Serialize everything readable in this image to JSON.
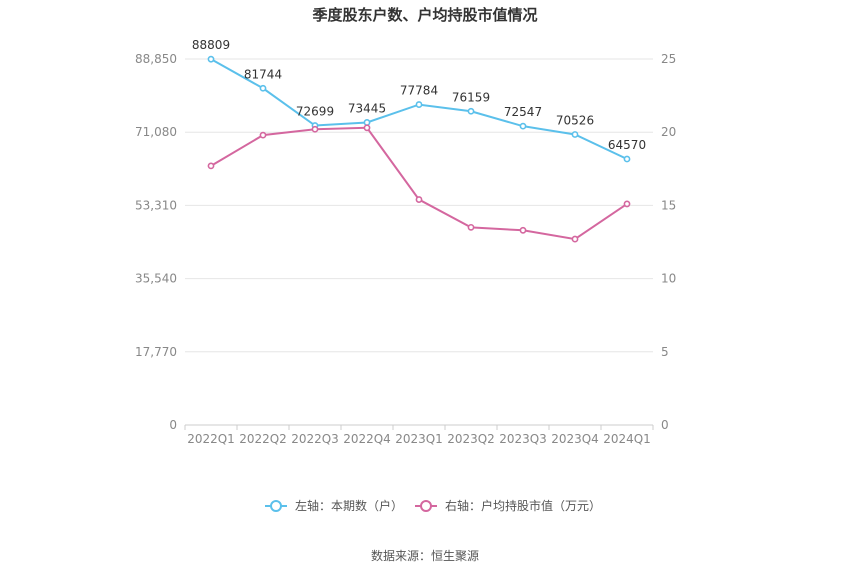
{
  "chart_data": {
    "type": "line",
    "title": "季度股东户数、户均持股市值情况",
    "categories": [
      "2022Q1",
      "2022Q2",
      "2022Q3",
      "2022Q4",
      "2023Q1",
      "2023Q2",
      "2023Q3",
      "2023Q4",
      "2024Q1"
    ],
    "left_axis": {
      "ylim": [
        0,
        88850
      ],
      "ticks": [
        0,
        17770,
        35540,
        53310,
        71080,
        88850
      ],
      "tick_labels": [
        "0",
        "17,770",
        "35,540",
        "53,310",
        "71,080",
        "88,850"
      ]
    },
    "right_axis": {
      "ylim": [
        0,
        25
      ],
      "ticks": [
        0,
        5,
        10,
        15,
        20,
        25
      ],
      "tick_labels": [
        "0",
        "5",
        "10",
        "15",
        "20",
        "25"
      ]
    },
    "series": [
      {
        "name": "左轴：本期数（户）",
        "axis": "left",
        "color": "#5bc0eb",
        "values": [
          88809,
          81744,
          72699,
          73445,
          77784,
          76159,
          72547,
          70526,
          64570
        ],
        "labels": [
          "88809",
          "81744",
          "72699",
          "73445",
          "77784",
          "76159",
          "72547",
          "70526",
          "64570"
        ]
      },
      {
        "name": "右轴：户均持股市值（万元）",
        "axis": "right",
        "color": "#d4679f",
        "values": [
          17.7,
          19.8,
          20.2,
          20.3,
          15.4,
          13.5,
          13.3,
          12.7,
          15.1
        ]
      }
    ],
    "grid": true,
    "legend_position": "bottom"
  },
  "source_label": "数据来源：恒生聚源"
}
